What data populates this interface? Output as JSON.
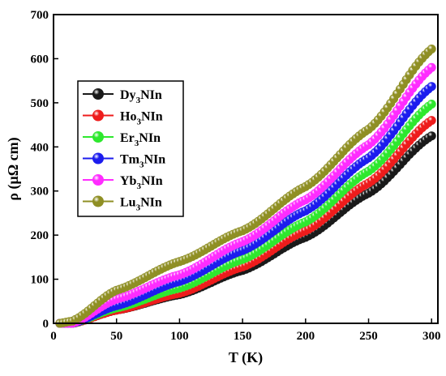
{
  "chart_data": {
    "type": "scatter",
    "xlabel": "T (K)",
    "ylabel": "ρ (μΩ cm)",
    "xlim": [
      0,
      305
    ],
    "ylim": [
      0,
      700
    ],
    "xticks": [
      0,
      50,
      100,
      150,
      200,
      250,
      300
    ],
    "yticks": [
      0,
      100,
      200,
      300,
      400,
      500,
      600,
      700
    ],
    "grid": false,
    "legend_position": "upper-left",
    "series": [
      {
        "name": "Dy",
        "suffix": "NIn",
        "color": "#1a1a1a",
        "x": [
          5,
          15,
          50,
          100,
          150,
          200,
          250,
          300
        ],
        "y": [
          0,
          0,
          30,
          65,
          120,
          195,
          295,
          425
        ]
      },
      {
        "name": "Ho",
        "suffix": "NIn",
        "color": "#ee1c1c",
        "x": [
          5,
          15,
          50,
          100,
          150,
          200,
          250,
          300
        ],
        "y": [
          0,
          0,
          30,
          68,
          128,
          210,
          318,
          460
        ]
      },
      {
        "name": "Er",
        "suffix": "NIn",
        "color": "#2ee82e",
        "x": [
          5,
          15,
          50,
          100,
          150,
          200,
          250,
          300
        ],
        "y": [
          0,
          0,
          35,
          80,
          145,
          230,
          345,
          497
        ]
      },
      {
        "name": "Tm",
        "suffix": "NIn",
        "color": "#1c1cee",
        "x": [
          5,
          15,
          50,
          100,
          150,
          200,
          250,
          300
        ],
        "y": [
          0,
          0,
          40,
          95,
          165,
          255,
          375,
          537
        ]
      },
      {
        "name": "Yb",
        "suffix": "NIn",
        "color": "#ff2cff",
        "x": [
          5,
          15,
          50,
          100,
          150,
          200,
          250,
          300
        ],
        "y": [
          0,
          0,
          55,
          110,
          185,
          280,
          405,
          580
        ]
      },
      {
        "name": "Lu",
        "suffix": "NIn",
        "color": "#8f8f24",
        "x": [
          5,
          15,
          50,
          100,
          150,
          200,
          250,
          300
        ],
        "y": [
          0,
          5,
          75,
          140,
          210,
          310,
          440,
          622
        ]
      }
    ]
  }
}
